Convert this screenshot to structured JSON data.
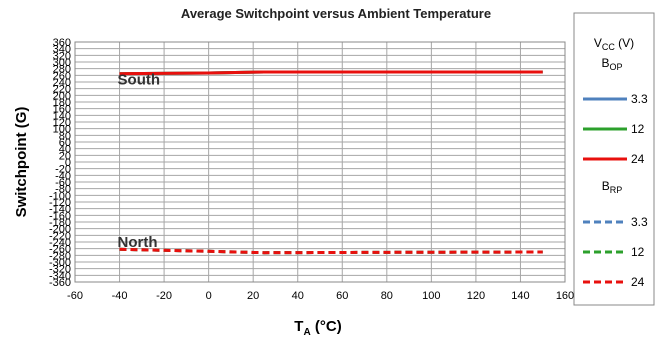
{
  "chart_data": {
    "type": "line",
    "title": "Average Switchpoint versus Ambient Temperature",
    "xlabel": {
      "main": "T",
      "sub": "A",
      "unit": " (°C)"
    },
    "ylabel": "Switchpoint (G)",
    "xlim": [
      -60,
      160
    ],
    "ylim": [
      -360,
      360
    ],
    "xticks": [
      -60,
      -40,
      -20,
      0,
      20,
      40,
      60,
      80,
      100,
      120,
      140,
      160
    ],
    "yticks": [
      360,
      340,
      320,
      300,
      280,
      260,
      240,
      220,
      200,
      180,
      160,
      140,
      120,
      100,
      80,
      60,
      40,
      20,
      0,
      -20,
      -40,
      -60,
      -80,
      -100,
      -120,
      -140,
      -160,
      -180,
      -200,
      -220,
      -240,
      -260,
      -280,
      -300,
      -320,
      -340,
      -360
    ],
    "grid": true,
    "legend_position": "right",
    "annotations": [
      {
        "text": "South",
        "x": -40,
        "y": 247
      },
      {
        "text": "North",
        "x": -40,
        "y": -240
      }
    ],
    "legend": {
      "header": {
        "main": "V",
        "sub": "CC",
        "rest": " (V)"
      },
      "groups": [
        {
          "label_main": "B",
          "label_sub": "OP",
          "entries": [
            "3.3",
            "12",
            "24"
          ]
        },
        {
          "label_main": "B",
          "label_sub": "RP",
          "entries": [
            "3.3",
            "12",
            "24"
          ]
        }
      ]
    },
    "series": [
      {
        "name": "3.3",
        "group": "BOP",
        "color": "#4f81bd",
        "dashed": false,
        "x": [
          -40,
          0,
          25,
          85,
          150
        ],
        "y": [
          265,
          267,
          270,
          270,
          270
        ]
      },
      {
        "name": "12",
        "group": "BOP",
        "color": "#2ca02c",
        "dashed": false,
        "x": [
          -40,
          0,
          25,
          85,
          150
        ],
        "y": [
          265,
          267,
          270,
          270,
          270
        ]
      },
      {
        "name": "24",
        "group": "BOP",
        "color": "#e8100e",
        "dashed": false,
        "x": [
          -40,
          0,
          25,
          85,
          150
        ],
        "y": [
          265,
          267,
          270,
          270,
          270
        ]
      },
      {
        "name": "3.3",
        "group": "BRP",
        "color": "#4f81bd",
        "dashed": true,
        "x": [
          -40,
          0,
          25,
          85,
          150
        ],
        "y": [
          -262,
          -268,
          -272,
          -271,
          -270
        ]
      },
      {
        "name": "12",
        "group": "BRP",
        "color": "#2ca02c",
        "dashed": true,
        "x": [
          -40,
          0,
          25,
          85,
          150
        ],
        "y": [
          -262,
          -268,
          -272,
          -271,
          -270
        ]
      },
      {
        "name": "24",
        "group": "BRP",
        "color": "#e8100e",
        "dashed": true,
        "x": [
          -40,
          0,
          25,
          85,
          150
        ],
        "y": [
          -262,
          -268,
          -272,
          -271,
          -270
        ]
      }
    ]
  }
}
